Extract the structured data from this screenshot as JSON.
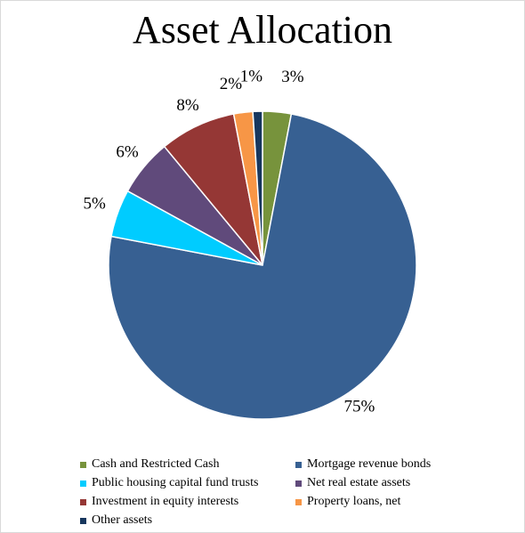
{
  "chart_data": {
    "type": "pie",
    "title": "Asset Allocation",
    "legend_position": "bottom",
    "slices": [
      {
        "name": "Cash and Restricted Cash",
        "value": 3,
        "label": "3%",
        "color": "#77933c"
      },
      {
        "name": "Mortgage revenue bonds",
        "value": 75,
        "label": "75%",
        "color": "#376092"
      },
      {
        "name": "Public housing capital fund trusts",
        "value": 5,
        "label": "5%",
        "color": "#00ccff"
      },
      {
        "name": "Net real estate assets",
        "value": 6,
        "label": "6%",
        "color": "#604a7b"
      },
      {
        "name": "Investment in equity interests",
        "value": 8,
        "label": "8%",
        "color": "#953735"
      },
      {
        "name": "Property loans, net",
        "value": 2,
        "label": "2%",
        "color": "#f79646"
      },
      {
        "name": "Other assets",
        "value": 1,
        "label": "1%",
        "color": "#17375e"
      }
    ]
  }
}
